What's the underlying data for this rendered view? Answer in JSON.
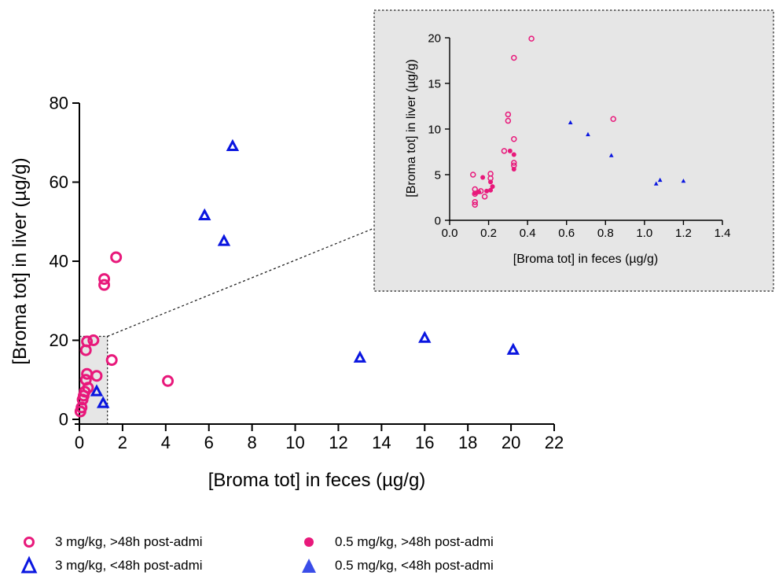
{
  "colors": {
    "pink": "#e8197b",
    "blue": "#0a16e0",
    "blue_fill": "#3a4de8",
    "inset_bg": "#e6e6e6"
  },
  "chart_data": [
    {
      "type": "scatter",
      "panel": "main",
      "xlabel": "[Broma tot] in feces (µg/g)",
      "ylabel": "[Broma tot] in liver (µg/g)",
      "xlim": [
        0,
        22
      ],
      "ylim": [
        0,
        80
      ],
      "xticks": [
        0,
        2,
        4,
        6,
        8,
        10,
        12,
        14,
        16,
        18,
        20,
        22
      ],
      "yticks": [
        0,
        20,
        40,
        60,
        80
      ],
      "highlighted_region": {
        "x": [
          0,
          1.3
        ],
        "y": [
          0,
          21
        ]
      },
      "series": [
        {
          "name": "3 mg/kg, >48h post-admi",
          "marker": "open-circle",
          "color": "#e8197b",
          "points": [
            [
              0.05,
              2
            ],
            [
              0.1,
              3
            ],
            [
              0.15,
              5
            ],
            [
              0.2,
              6
            ],
            [
              0.25,
              7
            ],
            [
              0.3,
              10
            ],
            [
              0.35,
              11.5
            ],
            [
              0.3,
              17.5
            ],
            [
              0.35,
              19.7
            ],
            [
              0.65,
              20
            ],
            [
              0.8,
              11
            ],
            [
              1.15,
              34
            ],
            [
              1.15,
              35.5
            ],
            [
              1.7,
              41
            ],
            [
              1.5,
              15
            ],
            [
              4.1,
              9.7
            ],
            [
              0.4,
              8
            ]
          ]
        },
        {
          "name": "3 mg/kg, <48h post-admi",
          "marker": "open-triangle",
          "color": "#0a16e0",
          "points": [
            [
              7.1,
              69
            ],
            [
              5.8,
              51.5
            ],
            [
              6.7,
              45
            ],
            [
              13,
              15.5
            ],
            [
              16,
              20.5
            ],
            [
              20.1,
              17.5
            ],
            [
              0.8,
              7
            ],
            [
              1.1,
              4
            ]
          ]
        }
      ]
    },
    {
      "type": "scatter",
      "panel": "inset",
      "xlabel": "[Broma tot] in feces (µg/g)",
      "ylabel": "[Broma tot] in liver (µg/g)",
      "xlim": [
        0,
        1.4
      ],
      "ylim": [
        0,
        20
      ],
      "xticks": [
        "0.0",
        "0.2",
        "0.4",
        "0.6",
        "0.8",
        "1.0",
        "1.2",
        "1.4"
      ],
      "yticks": [
        "0",
        "5",
        "10",
        "15",
        "20"
      ],
      "series": [
        {
          "name": "3 mg/kg, >48h post-admi",
          "marker": "open-circle",
          "color": "#e8197b",
          "points": [
            [
              0.42,
              19.9
            ],
            [
              0.33,
              17.8
            ],
            [
              0.3,
              11.6
            ],
            [
              0.3,
              10.9
            ],
            [
              0.84,
              11.1
            ],
            [
              0.33,
              8.9
            ],
            [
              0.28,
              7.6
            ],
            [
              0.33,
              6.3
            ],
            [
              0.33,
              6.0
            ],
            [
              0.12,
              5.0
            ],
            [
              0.21,
              5.1
            ],
            [
              0.21,
              4.6
            ],
            [
              0.13,
              3.4
            ],
            [
              0.13,
              2.9
            ],
            [
              0.13,
              2.0
            ],
            [
              0.13,
              1.7
            ],
            [
              0.18,
              2.6
            ],
            [
              0.16,
              3.2
            ]
          ]
        },
        {
          "name": "0.5 mg/kg, >48h post-admi",
          "marker": "filled-circle",
          "color": "#e8197b",
          "points": [
            [
              0.31,
              7.6
            ],
            [
              0.33,
              7.2
            ],
            [
              0.33,
              5.6
            ],
            [
              0.17,
              4.7
            ],
            [
              0.21,
              4.2
            ],
            [
              0.22,
              3.7
            ],
            [
              0.21,
              3.3
            ],
            [
              0.19,
              3.2
            ],
            [
              0.15,
              3.1
            ],
            [
              0.13,
              3.0
            ]
          ]
        },
        {
          "name": "0.5 mg/kg, <48h post-admi",
          "marker": "filled-triangle",
          "color": "#0a16e0",
          "points": [
            [
              0.62,
              10.7
            ],
            [
              0.71,
              9.4
            ],
            [
              0.83,
              7.1
            ],
            [
              1.06,
              4.0
            ],
            [
              1.08,
              4.4
            ],
            [
              1.2,
              4.3
            ]
          ]
        }
      ]
    }
  ],
  "legend": [
    {
      "label": "3 mg/kg, >48h post-admi",
      "marker": "open-circle",
      "color": "#e8197b"
    },
    {
      "label": "0.5 mg/kg, >48h post-admi",
      "marker": "filled-circle",
      "color": "#e8197b"
    },
    {
      "label": "3 mg/kg, <48h post-admi",
      "marker": "open-triangle",
      "color": "#0a16e0"
    },
    {
      "label": "0.5 mg/kg, <48h post-admi",
      "marker": "filled-triangle",
      "color": "#3a4de8"
    }
  ]
}
